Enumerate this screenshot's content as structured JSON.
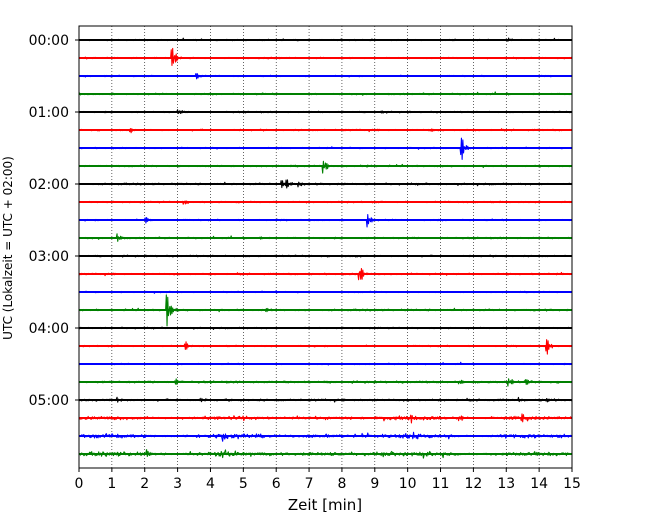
{
  "chart_data": {
    "type": "line",
    "title": "",
    "xlabel": "Zeit  [min]",
    "ylabel": "UTC (Lokalzeit = UTC + 02:00)",
    "xlim": [
      0,
      15
    ],
    "x_ticks": [
      0,
      1,
      2,
      3,
      4,
      5,
      6,
      7,
      8,
      9,
      10,
      11,
      12,
      13,
      14,
      15
    ],
    "x_tick_labels": [
      "0",
      "1",
      "2",
      "3",
      "4",
      "5",
      "6",
      "7",
      "8",
      "9",
      "10",
      "11",
      "12",
      "13",
      "14",
      "15"
    ],
    "y_tick_labels": [
      "00:00",
      "01:00",
      "02:00",
      "03:00",
      "04:00",
      "05:00"
    ],
    "grid": "vertical dotted lines at each minute",
    "legend": "none",
    "trace_minutes": 15,
    "color_cycle": [
      "#000000",
      "#ff0000",
      "#0000ff",
      "#008000"
    ],
    "traces": [
      {
        "start": "00:00",
        "noise": 0.18,
        "spikes": [
          [
            13.1,
            0.35
          ]
        ]
      },
      {
        "start": "00:15",
        "noise": 0.2,
        "spikes": [
          [
            2.85,
            1.6
          ],
          [
            2.9,
            0.8
          ]
        ]
      },
      {
        "start": "00:30",
        "noise": 0.18,
        "spikes": [
          [
            3.6,
            0.6
          ]
        ]
      },
      {
        "start": "00:45",
        "noise": 0.22,
        "spikes": []
      },
      {
        "start": "01:00",
        "noise": 0.2,
        "spikes": [
          [
            3.05,
            0.5
          ],
          [
            9.2,
            0.3
          ]
        ]
      },
      {
        "start": "01:15",
        "noise": 0.22,
        "spikes": [
          [
            1.55,
            0.6
          ],
          [
            10.7,
            0.3
          ]
        ]
      },
      {
        "start": "01:30",
        "noise": 0.18,
        "spikes": [
          [
            11.65,
            2.4
          ]
        ]
      },
      {
        "start": "01:45",
        "noise": 0.22,
        "spikes": [
          [
            7.45,
            1.6
          ],
          [
            8.8,
            0.3
          ]
        ]
      },
      {
        "start": "02:00",
        "noise": 0.24,
        "spikes": [
          [
            6.2,
            0.7
          ],
          [
            6.35,
            0.7
          ],
          [
            6.7,
            0.6
          ]
        ]
      },
      {
        "start": "02:15",
        "noise": 0.22,
        "spikes": [
          [
            3.2,
            0.7
          ]
        ]
      },
      {
        "start": "02:30",
        "noise": 0.2,
        "spikes": [
          [
            2.05,
            0.6
          ],
          [
            8.8,
            1.3
          ]
        ]
      },
      {
        "start": "02:45",
        "noise": 0.22,
        "spikes": [
          [
            1.2,
            0.8
          ],
          [
            5.5,
            0.3
          ]
        ]
      },
      {
        "start": "03:00",
        "noise": 0.22,
        "spikes": [
          [
            8.4,
            0.3
          ]
        ]
      },
      {
        "start": "03:15",
        "noise": 0.22,
        "spikes": [
          [
            8.55,
            2.2
          ]
        ]
      },
      {
        "start": "03:30",
        "noise": 0.18,
        "spikes": [
          [
            6.0,
            0.2
          ]
        ]
      },
      {
        "start": "03:45",
        "noise": 0.24,
        "spikes": [
          [
            2.7,
            3.2
          ],
          [
            5.7,
            0.4
          ]
        ]
      },
      {
        "start": "04:00",
        "noise": 0.2,
        "spikes": []
      },
      {
        "start": "04:15",
        "noise": 0.2,
        "spikes": [
          [
            3.25,
            0.9
          ],
          [
            14.25,
            1.6
          ]
        ]
      },
      {
        "start": "04:30",
        "noise": 0.18,
        "spikes": []
      },
      {
        "start": "04:45",
        "noise": 0.28,
        "spikes": [
          [
            2.95,
            0.7
          ],
          [
            11.6,
            0.5
          ],
          [
            13.1,
            0.8
          ],
          [
            13.6,
            0.7
          ]
        ]
      },
      {
        "start": "05:00",
        "noise": 0.28,
        "spikes": [
          [
            1.2,
            0.5
          ],
          [
            3.7,
            0.5
          ],
          [
            14.2,
            0.5
          ],
          [
            13.4,
            0.4
          ]
        ]
      },
      {
        "start": "05:15",
        "noise": 0.4,
        "spikes": [
          [
            10.1,
            0.8
          ],
          [
            11.6,
            0.8
          ],
          [
            13.5,
            0.7
          ]
        ]
      },
      {
        "start": "05:30",
        "noise": 0.48,
        "spikes": [
          [
            4.4,
            1.2
          ],
          [
            10.2,
            1.0
          ]
        ]
      },
      {
        "start": "05:45",
        "noise": 0.5,
        "spikes": [
          [
            2.1,
            0.8
          ],
          [
            4.4,
            0.6
          ]
        ]
      }
    ]
  }
}
